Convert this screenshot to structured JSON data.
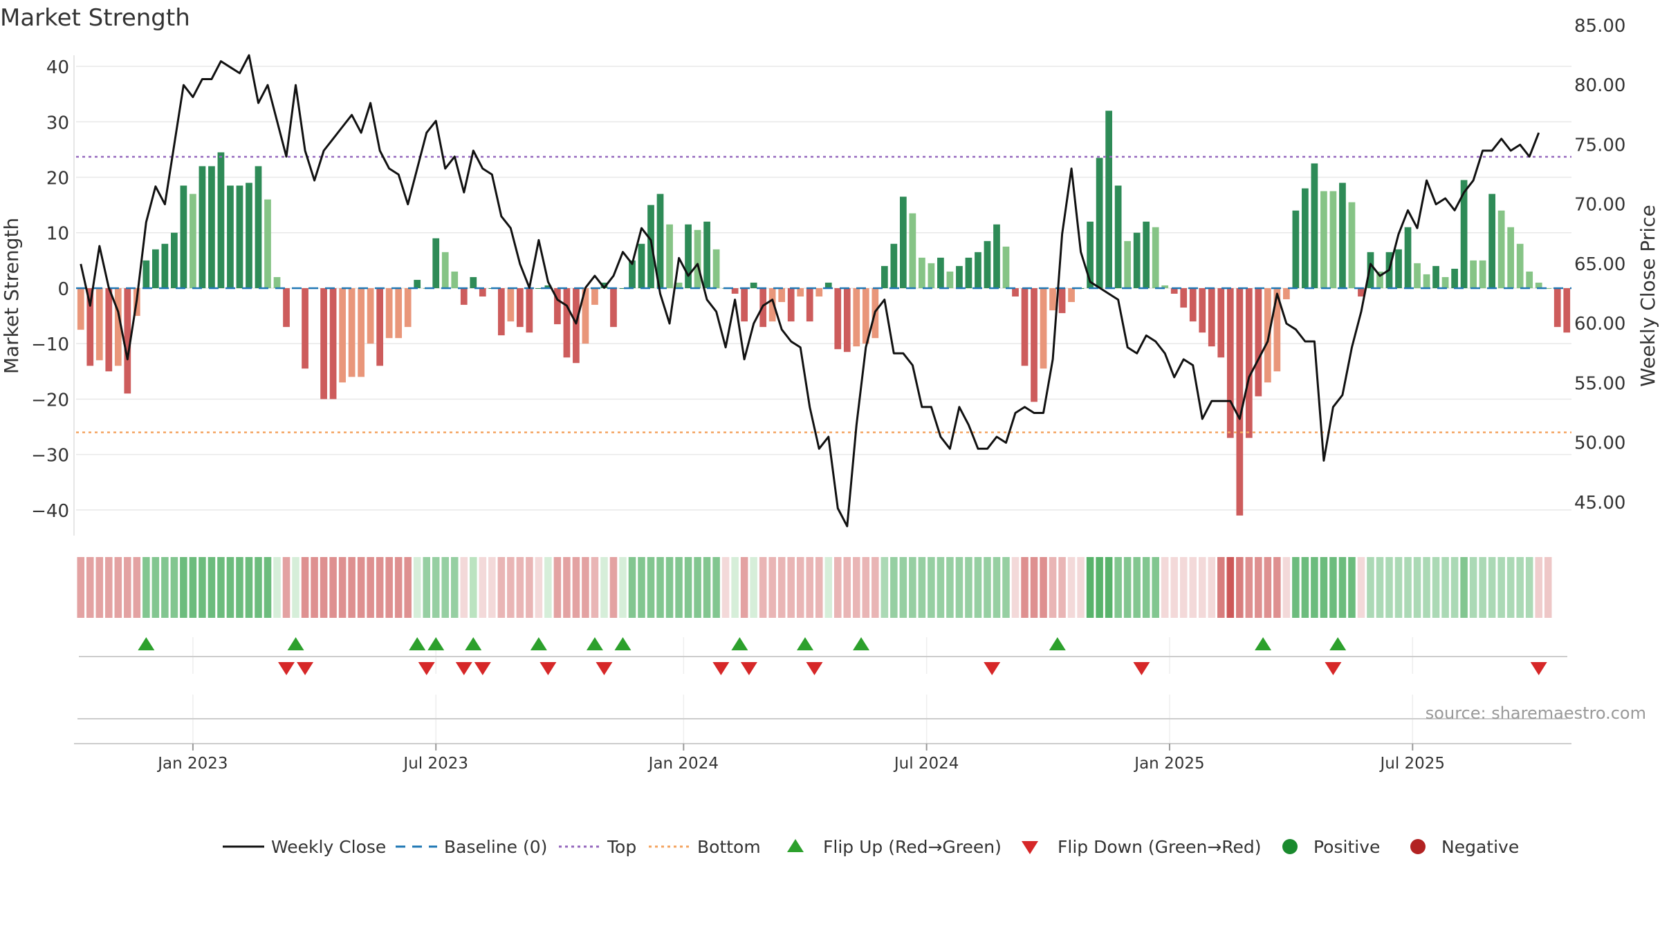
{
  "chart_data": {
    "type": "bar",
    "title": "Market Strength",
    "ylabel": "Market Strength",
    "y2label": "Weekly Close Price",
    "ylim": [
      -44,
      42
    ],
    "y2lim": [
      42.5,
      82.5
    ],
    "yticks": [
      40,
      30,
      20,
      10,
      0,
      -10,
      -20,
      -30,
      -40
    ],
    "ytick_labels": [
      "40",
      "30",
      "20",
      "10",
      "0",
      "−10",
      "−20",
      "−30",
      "−40"
    ],
    "y2ticks": [
      85,
      80,
      75,
      70,
      65,
      60,
      55,
      50,
      45
    ],
    "y2tick_labels": [
      "85.00",
      "80.00",
      "75.00",
      "70.00",
      "65.00",
      "60.00",
      "55.00",
      "50.00",
      "45.00"
    ],
    "top_line": 23.7,
    "bottom_line": -26,
    "x_start": "2022-10-10",
    "x_end": "2025-09-22",
    "x_tick_labels": [
      "Jan 2023",
      "Jul 2023",
      "Jan 2024",
      "Jul 2024",
      "Jan 2025",
      "Jul 2025"
    ],
    "x_tick_weeks": [
      12,
      38,
      64.5,
      90.5,
      116.5,
      142.5
    ],
    "strength": [
      -7.5,
      -14,
      -13,
      -15,
      -14,
      -19,
      -5,
      5,
      7,
      8,
      10,
      18.5,
      17,
      22,
      22,
      24.5,
      18.5,
      18.5,
      19,
      22,
      16,
      2,
      -7,
      0,
      -14.5,
      0,
      -20,
      -20,
      -17,
      -16,
      -16,
      -10,
      -14,
      -9,
      -9,
      -7,
      1.5,
      0,
      9,
      6.5,
      3,
      -3,
      2,
      -1.5,
      0,
      -8.5,
      -6,
      -7,
      -8,
      0,
      0.5,
      -6.5,
      -12.5,
      -13.5,
      -10,
      -3,
      1,
      -7,
      0,
      5,
      8,
      15,
      17,
      11.5,
      1,
      11.5,
      10.5,
      12,
      7,
      0,
      -1,
      -6,
      1,
      -7,
      -6,
      -2.5,
      -6,
      -1.5,
      -6,
      -1.5,
      1,
      -11,
      -11.5,
      -10.5,
      -10,
      -9,
      4,
      8,
      16.5,
      13.5,
      5.5,
      4.5,
      5.5,
      3,
      4,
      5.5,
      6.5,
      8.5,
      11.5,
      7.5,
      -1.5,
      -14,
      -20.5,
      -14.5,
      -4,
      -4.5,
      -2.5,
      0,
      12,
      23.5,
      32,
      18.5,
      8.5,
      10,
      12,
      11,
      0.5,
      -1,
      -3.5,
      -6,
      -8,
      -10.5,
      -12.5,
      -27,
      -41,
      -27,
      -19.5,
      -17,
      -15,
      -2,
      14,
      18,
      22.5,
      17.5,
      17.5,
      19,
      15.5,
      -1.5,
      6.5,
      3,
      6.5,
      7,
      11,
      4.5,
      2.5,
      4,
      2,
      3.5,
      19.5,
      5,
      5,
      17,
      14,
      11,
      8,
      3,
      1,
      0,
      -7,
      -8
    ],
    "price": [
      65,
      61.5,
      66.5,
      63,
      61,
      57,
      62,
      68.5,
      71.5,
      70,
      75,
      80,
      79,
      80.5,
      80.5,
      82,
      81.5,
      81,
      82.5,
      78.5,
      80,
      77,
      74,
      80,
      74.5,
      72,
      74.5,
      75.5,
      76.5,
      77.5,
      76,
      78.5,
      74.5,
      73,
      72.5,
      70,
      73,
      76,
      77,
      73,
      74,
      71,
      74.5,
      73,
      72.5,
      69,
      68,
      65,
      63,
      67,
      63.5,
      62,
      61.5,
      60,
      63,
      64,
      63,
      64,
      66,
      65,
      68,
      67,
      62.5,
      60,
      65.5,
      64,
      65,
      62,
      61,
      58,
      62,
      57,
      60,
      61.5,
      62,
      59.5,
      58.5,
      58,
      53,
      49.5,
      50.5,
      44.5,
      43,
      51.5,
      58,
      61,
      62,
      57.5,
      57.5,
      56.5,
      53,
      53,
      50.5,
      49.5,
      53,
      51.5,
      49.5,
      49.5,
      50.5,
      50,
      52.5,
      53,
      52.5,
      52.5,
      57,
      67.5,
      73,
      66,
      63.5,
      63,
      62.5,
      62,
      58,
      57.5,
      59,
      58.5,
      57.5,
      55.5,
      57,
      56.5,
      52,
      53.5,
      53.5,
      53.5,
      52,
      55.5,
      57,
      58.5,
      62.5,
      60,
      59.5,
      58.5,
      58.5,
      48.5,
      53,
      54,
      58,
      61,
      65,
      64,
      64.5,
      67.5,
      69.5,
      68,
      72,
      70,
      70.5,
      69.5,
      71,
      72,
      74.5,
      74.5,
      75.5,
      74.5,
      75,
      74,
      76
    ],
    "strip_marks": [
      "red",
      "red",
      "red",
      "red",
      "red",
      "red",
      "red",
      "green",
      "green",
      "green",
      "green",
      "green",
      "green",
      "green",
      "green",
      "green",
      "green",
      "green",
      "green",
      "green",
      "green",
      "lightgreen",
      "red",
      "lightgreen",
      "red",
      "red",
      "red",
      "red",
      "red",
      "red",
      "red",
      "red",
      "red",
      "red",
      "red",
      "red",
      "lightgreen",
      "green",
      "green",
      "green",
      "green",
      "lightred",
      "lightgreen",
      "lightred",
      "lightred",
      "red",
      "red",
      "red",
      "red",
      "lightred",
      "lightgreen",
      "red",
      "red",
      "red",
      "red",
      "red",
      "lightgreen",
      "red",
      "lightgreen",
      "green",
      "green",
      "green",
      "green",
      "green",
      "green",
      "green",
      "green",
      "green",
      "green",
      "lightred",
      "lightgreen",
      "red",
      "lightgreen",
      "red",
      "red",
      "red",
      "red",
      "red",
      "red",
      "red",
      "lightgreen",
      "red",
      "red",
      "red",
      "red",
      "red",
      "green",
      "green",
      "green",
      "green",
      "green",
      "green",
      "green",
      "green",
      "green",
      "green",
      "green",
      "green",
      "green",
      "green",
      "lightred",
      "red",
      "red",
      "red",
      "red",
      "red",
      "lightred",
      "lightred",
      "green",
      "green",
      "green",
      "green",
      "green",
      "green",
      "green",
      "green",
      "lightred",
      "lightred",
      "lightred",
      "lightred",
      "lightred",
      "lightred",
      "red",
      "red",
      "red",
      "red",
      "red",
      "red",
      "red",
      "lightred",
      "green",
      "green",
      "green",
      "green",
      "green",
      "green",
      "green",
      "lightred",
      "green",
      "green",
      "green",
      "green",
      "green",
      "green",
      "green",
      "green",
      "green",
      "green",
      "green",
      "green",
      "green",
      "green",
      "green",
      "green",
      "green",
      "green",
      "lightred",
      "red"
    ],
    "strip_marks_intensity": [
      0.5,
      0.5,
      0.5,
      0.5,
      0.5,
      0.5,
      0.5,
      0.6,
      0.6,
      0.6,
      0.6,
      0.7,
      0.7,
      0.7,
      0.7,
      0.7,
      0.7,
      0.7,
      0.7,
      0.7,
      0.7,
      0.3,
      0.5,
      0.3,
      0.6,
      0.6,
      0.6,
      0.6,
      0.6,
      0.6,
      0.6,
      0.6,
      0.6,
      0.6,
      0.6,
      0.6,
      0.3,
      0.5,
      0.5,
      0.5,
      0.5,
      0.3,
      0.5,
      0.3,
      0.3,
      0.4,
      0.4,
      0.4,
      0.4,
      0.3,
      0.3,
      0.5,
      0.5,
      0.5,
      0.5,
      0.4,
      0.3,
      0.5,
      0.3,
      0.6,
      0.6,
      0.6,
      0.6,
      0.6,
      0.6,
      0.6,
      0.6,
      0.6,
      0.6,
      0.3,
      0.3,
      0.5,
      0.3,
      0.4,
      0.4,
      0.4,
      0.4,
      0.4,
      0.4,
      0.4,
      0.3,
      0.4,
      0.4,
      0.4,
      0.4,
      0.4,
      0.4,
      0.5,
      0.5,
      0.5,
      0.5,
      0.5,
      0.5,
      0.5,
      0.5,
      0.5,
      0.5,
      0.5,
      0.5,
      0.5,
      0.3,
      0.6,
      0.6,
      0.6,
      0.4,
      0.4,
      0.3,
      0.3,
      0.8,
      0.8,
      0.8,
      0.6,
      0.6,
      0.6,
      0.6,
      0.6,
      0.3,
      0.3,
      0.3,
      0.3,
      0.3,
      0.3,
      0.7,
      0.9,
      0.7,
      0.6,
      0.6,
      0.6,
      0.6,
      0.3,
      0.7,
      0.7,
      0.7,
      0.7,
      0.7,
      0.7,
      0.7,
      0.3,
      0.4,
      0.4,
      0.4,
      0.4,
      0.4,
      0.4,
      0.4,
      0.4,
      0.4,
      0.4,
      0.6,
      0.4,
      0.4,
      0.4,
      0.4,
      0.4,
      0.4,
      0.4,
      0.4,
      0.3,
      0.4
    ],
    "flip_up_weeks": [
      7,
      23,
      36,
      38,
      42,
      49,
      55,
      58,
      70.5,
      77.5,
      83.5,
      104.5,
      126.5,
      134.5
    ],
    "flip_down_weeks": [
      22,
      24,
      37,
      41,
      43,
      50,
      56,
      68.5,
      71.5,
      78.5,
      97.5,
      113.5,
      134,
      156
    ]
  },
  "legend": [
    {
      "label": "Weekly Close",
      "symbol": "solid-line",
      "color": "#111111"
    },
    {
      "label": "Baseline (0)",
      "symbol": "dash-line",
      "color": "#1f77b4"
    },
    {
      "label": "Top",
      "symbol": "dot-line",
      "color": "#9467bd"
    },
    {
      "label": "Bottom",
      "symbol": "dot-line",
      "color": "#f4a460"
    },
    {
      "label": "Flip Up (Red→Green)",
      "symbol": "triangle-up",
      "color": "#2ca02c"
    },
    {
      "label": "Flip Down (Green→Red)",
      "symbol": "triangle-down",
      "color": "#d62728"
    },
    {
      "label": "Positive",
      "symbol": "circle",
      "color": "#1a8a2e"
    },
    {
      "label": "Negative",
      "symbol": "circle",
      "color": "#b22222"
    }
  ],
  "source": "source: sharemaestro.com",
  "colors": {
    "pos_strong": "#2e8b57",
    "pos_light": "#86c486",
    "neg_strong": "#cd5c5c",
    "neg_light": "#e9967a",
    "price_line": "#111111",
    "top_line": "#9467bd",
    "bottom_line": "#f4a460",
    "baseline": "#1f77b4",
    "grid": "#e8e8e8",
    "axis_text": "#333333"
  }
}
